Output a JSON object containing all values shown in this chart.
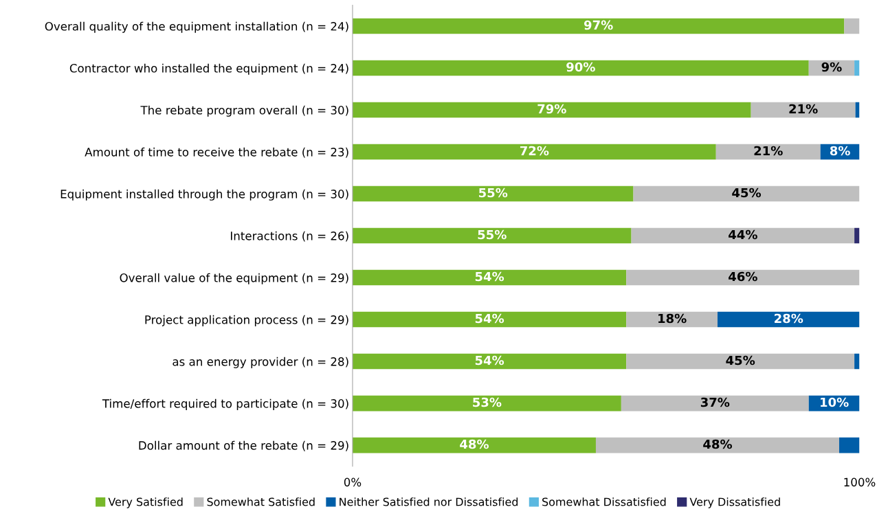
{
  "chart_data": {
    "type": "bar",
    "orientation": "horizontal",
    "stacked": true,
    "categories": [
      "Overall quality of the equipment installation (n = 24)",
      "Contractor who installed the equipment (n = 24)",
      "The rebate program overall (n = 30)",
      "Amount of time to receive the rebate (n = 23)",
      "Equipment installed through the program (n = 30)",
      "Interactions (n = 26)",
      "Overall value of the equipment (n = 29)",
      "Project application process (n = 29)",
      "as an energy provider (n = 28)",
      "Time/effort required to participate (n = 30)",
      "Dollar amount of the rebate (n = 29)"
    ],
    "series": [
      {
        "name": "Very Satisfied",
        "color": "#77b82a",
        "values": [
          97,
          90,
          78.6,
          71.7,
          55.4,
          55,
          54,
          54,
          54,
          53,
          48
        ],
        "value_labels": [
          "97%",
          "90%",
          "79%",
          "72%",
          "55%",
          "55%",
          "54%",
          "54%",
          "54%",
          "53%",
          "48%"
        ]
      },
      {
        "name": "Somewhat Satisfied",
        "color": "#bfbfbf",
        "values": [
          3,
          9,
          20.6,
          20.6,
          44.6,
          44,
          46,
          18,
          45,
          37,
          48
        ],
        "value_labels": [
          null,
          "9%",
          "21%",
          "21%",
          "45%",
          "44%",
          "46%",
          "18%",
          "45%",
          "37%",
          "48%"
        ]
      },
      {
        "name": "Neither Satisfied nor Dissatisfied",
        "color": "#005ea8",
        "values": [
          0,
          0,
          0.8,
          7.7,
          0,
          0,
          0,
          28,
          1,
          10,
          4
        ],
        "value_labels": [
          null,
          null,
          null,
          "8%",
          null,
          null,
          null,
          "28%",
          null,
          "10%",
          null
        ]
      },
      {
        "name": "Somewhat Dissatisfied",
        "color": "#5bb8e0",
        "values": [
          0,
          1,
          0,
          0,
          0,
          0,
          0,
          0,
          0,
          0,
          0
        ]
      },
      {
        "name": "Very Dissatisfied",
        "color": "#2e2c6e",
        "values": [
          0,
          0,
          0,
          0,
          0,
          1,
          0,
          0,
          0,
          0,
          0
        ]
      }
    ],
    "xlim": [
      0,
      100
    ],
    "xticks": [
      {
        "value": 0,
        "label": "0%"
      },
      {
        "value": 100,
        "label": "100%"
      }
    ],
    "grid": false,
    "legend": "bottom"
  }
}
